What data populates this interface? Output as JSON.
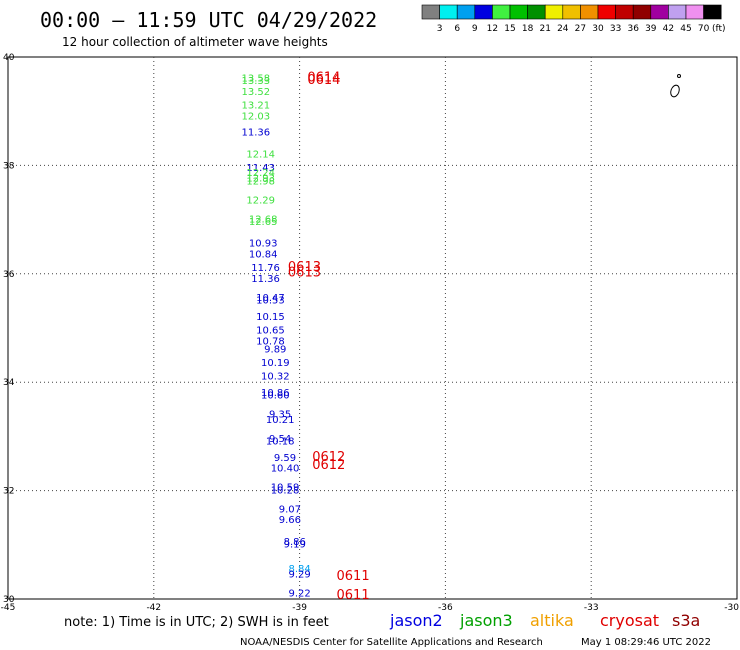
{
  "header": {
    "title": "00:00 – 11:59 UTC 04/29/2022",
    "subtitle": "12 hour collection of altimeter wave heights"
  },
  "colorbar": {
    "swatches": [
      "#808080",
      "#00f0f0",
      "#00a0f0",
      "#0000e0",
      "#40f040",
      "#00c000",
      "#009000",
      "#f0f000",
      "#f0c000",
      "#f09000",
      "#f00000",
      "#c00000",
      "#900000",
      "#a000a0",
      "#c0a0f0",
      "#f090f0",
      "#000000"
    ],
    "labels": [
      "3",
      "6",
      "9",
      "12",
      "15",
      "18",
      "21",
      "24",
      "27",
      "30",
      "33",
      "36",
      "39",
      "42",
      "45",
      "70"
    ],
    "unit": "(ft)"
  },
  "footer": {
    "note": "note: 1) Time is in UTC; 2) SWH is in feet",
    "credit": "NOAA/NESDIS Center for Satellite Applications and Research",
    "generated": "May 1 08:29:46 UTC 2022"
  },
  "legend": [
    {
      "name": "jason2",
      "color": "#0000e0"
    },
    {
      "name": "jason3",
      "color": "#00a000"
    },
    {
      "name": "altika",
      "color": "#f0a000"
    },
    {
      "name": "cryosat",
      "color": "#e00000"
    },
    {
      "name": "s3a",
      "color": "#900000"
    }
  ],
  "chart_data": {
    "type": "scatter",
    "xlim": [
      -45,
      -30
    ],
    "ylim": [
      30,
      40
    ],
    "xticks": [
      -45,
      -42,
      -39,
      -36,
      -33,
      -30
    ],
    "yticks": [
      30,
      32,
      34,
      36,
      38,
      40
    ],
    "grid": true,
    "colors": {
      "green": "#40e040",
      "blue": "#0000d0",
      "lightblue": "#00a0f0",
      "red": "#e00000"
    },
    "points": [
      {
        "lon": -39.9,
        "lat": 39.55,
        "label": "13.58",
        "c": "green"
      },
      {
        "lon": -39.9,
        "lat": 39.5,
        "label": "13.33",
        "c": "green"
      },
      {
        "lon": -39.9,
        "lat": 39.3,
        "label": "13.52",
        "c": "green"
      },
      {
        "lon": -39.9,
        "lat": 39.05,
        "label": "13.21",
        "c": "green"
      },
      {
        "lon": -39.9,
        "lat": 38.85,
        "label": "12.03",
        "c": "green"
      },
      {
        "lon": -39.9,
        "lat": 38.55,
        "label": "11.36",
        "c": "blue"
      },
      {
        "lon": -39.8,
        "lat": 38.15,
        "label": "12.14",
        "c": "green"
      },
      {
        "lon": -39.8,
        "lat": 37.9,
        "label": "11.43",
        "c": "blue"
      },
      {
        "lon": -39.8,
        "lat": 37.8,
        "label": "12.24",
        "c": "green"
      },
      {
        "lon": -39.8,
        "lat": 37.7,
        "label": "12.93",
        "c": "green"
      },
      {
        "lon": -39.8,
        "lat": 37.65,
        "label": "12.98",
        "c": "green"
      },
      {
        "lon": -39.8,
        "lat": 37.3,
        "label": "12.29",
        "c": "green"
      },
      {
        "lon": -39.75,
        "lat": 36.95,
        "label": "12.68",
        "c": "green"
      },
      {
        "lon": -39.75,
        "lat": 36.9,
        "label": "12.65",
        "c": "green"
      },
      {
        "lon": -39.75,
        "lat": 36.5,
        "label": "10.93",
        "c": "blue"
      },
      {
        "lon": -39.75,
        "lat": 36.3,
        "label": "10.84",
        "c": "blue"
      },
      {
        "lon": -39.7,
        "lat": 36.05,
        "label": "11.76",
        "c": "blue"
      },
      {
        "lon": -39.7,
        "lat": 35.85,
        "label": "11.36",
        "c": "blue"
      },
      {
        "lon": -39.6,
        "lat": 35.5,
        "label": "10.47",
        "c": "blue"
      },
      {
        "lon": -39.6,
        "lat": 35.45,
        "label": "10.53",
        "c": "blue"
      },
      {
        "lon": -39.6,
        "lat": 35.15,
        "label": "10.15",
        "c": "blue"
      },
      {
        "lon": -39.6,
        "lat": 34.9,
        "label": "10.65",
        "c": "blue"
      },
      {
        "lon": -39.6,
        "lat": 34.7,
        "label": "10.78",
        "c": "blue"
      },
      {
        "lon": -39.5,
        "lat": 34.55,
        "label": "9.89",
        "c": "blue"
      },
      {
        "lon": -39.5,
        "lat": 34.3,
        "label": "10.19",
        "c": "blue"
      },
      {
        "lon": -39.5,
        "lat": 34.05,
        "label": "10.32",
        "c": "blue"
      },
      {
        "lon": -39.5,
        "lat": 33.75,
        "label": "10.86",
        "c": "blue"
      },
      {
        "lon": -39.5,
        "lat": 33.7,
        "label": "10.60",
        "c": "blue"
      },
      {
        "lon": -39.4,
        "lat": 33.35,
        "label": "9.35",
        "c": "blue"
      },
      {
        "lon": -39.4,
        "lat": 33.25,
        "label": "10.21",
        "c": "blue"
      },
      {
        "lon": -39.4,
        "lat": 32.9,
        "label": "9.54",
        "c": "blue"
      },
      {
        "lon": -39.4,
        "lat": 32.85,
        "label": "10.18",
        "c": "blue"
      },
      {
        "lon": -39.3,
        "lat": 32.55,
        "label": "9.59",
        "c": "blue"
      },
      {
        "lon": -39.3,
        "lat": 32.35,
        "label": "10.40",
        "c": "blue"
      },
      {
        "lon": -39.3,
        "lat": 32.0,
        "label": "10.59",
        "c": "blue"
      },
      {
        "lon": -39.3,
        "lat": 31.95,
        "label": "10.28",
        "c": "blue"
      },
      {
        "lon": -39.2,
        "lat": 31.6,
        "label": "9.07",
        "c": "blue"
      },
      {
        "lon": -39.2,
        "lat": 31.4,
        "label": "9.66",
        "c": "blue"
      },
      {
        "lon": -39.1,
        "lat": 31.0,
        "label": "8.86",
        "c": "blue"
      },
      {
        "lon": -39.1,
        "lat": 30.95,
        "label": "9.19",
        "c": "blue"
      },
      {
        "lon": -39.0,
        "lat": 30.5,
        "label": "8.84",
        "c": "lightblue"
      },
      {
        "lon": -39.0,
        "lat": 30.4,
        "label": "9.29",
        "c": "blue"
      },
      {
        "lon": -39.0,
        "lat": 30.05,
        "label": "9.22",
        "c": "blue"
      },
      {
        "lon": -38.5,
        "lat": 39.55,
        "label": "0614",
        "c": "red"
      },
      {
        "lon": -38.5,
        "lat": 39.5,
        "label": "0614",
        "c": "red"
      },
      {
        "lon": -38.9,
        "lat": 36.05,
        "label": "0613",
        "c": "red"
      },
      {
        "lon": -38.9,
        "lat": 35.95,
        "label": "0613",
        "c": "red"
      },
      {
        "lon": -38.4,
        "lat": 32.55,
        "label": "0612",
        "c": "red"
      },
      {
        "lon": -38.4,
        "lat": 32.4,
        "label": "0612",
        "c": "red"
      },
      {
        "lon": -37.9,
        "lat": 30.35,
        "label": "0611",
        "c": "red"
      },
      {
        "lon": -37.9,
        "lat": 30.0,
        "label": "0611",
        "c": "red"
      }
    ]
  }
}
